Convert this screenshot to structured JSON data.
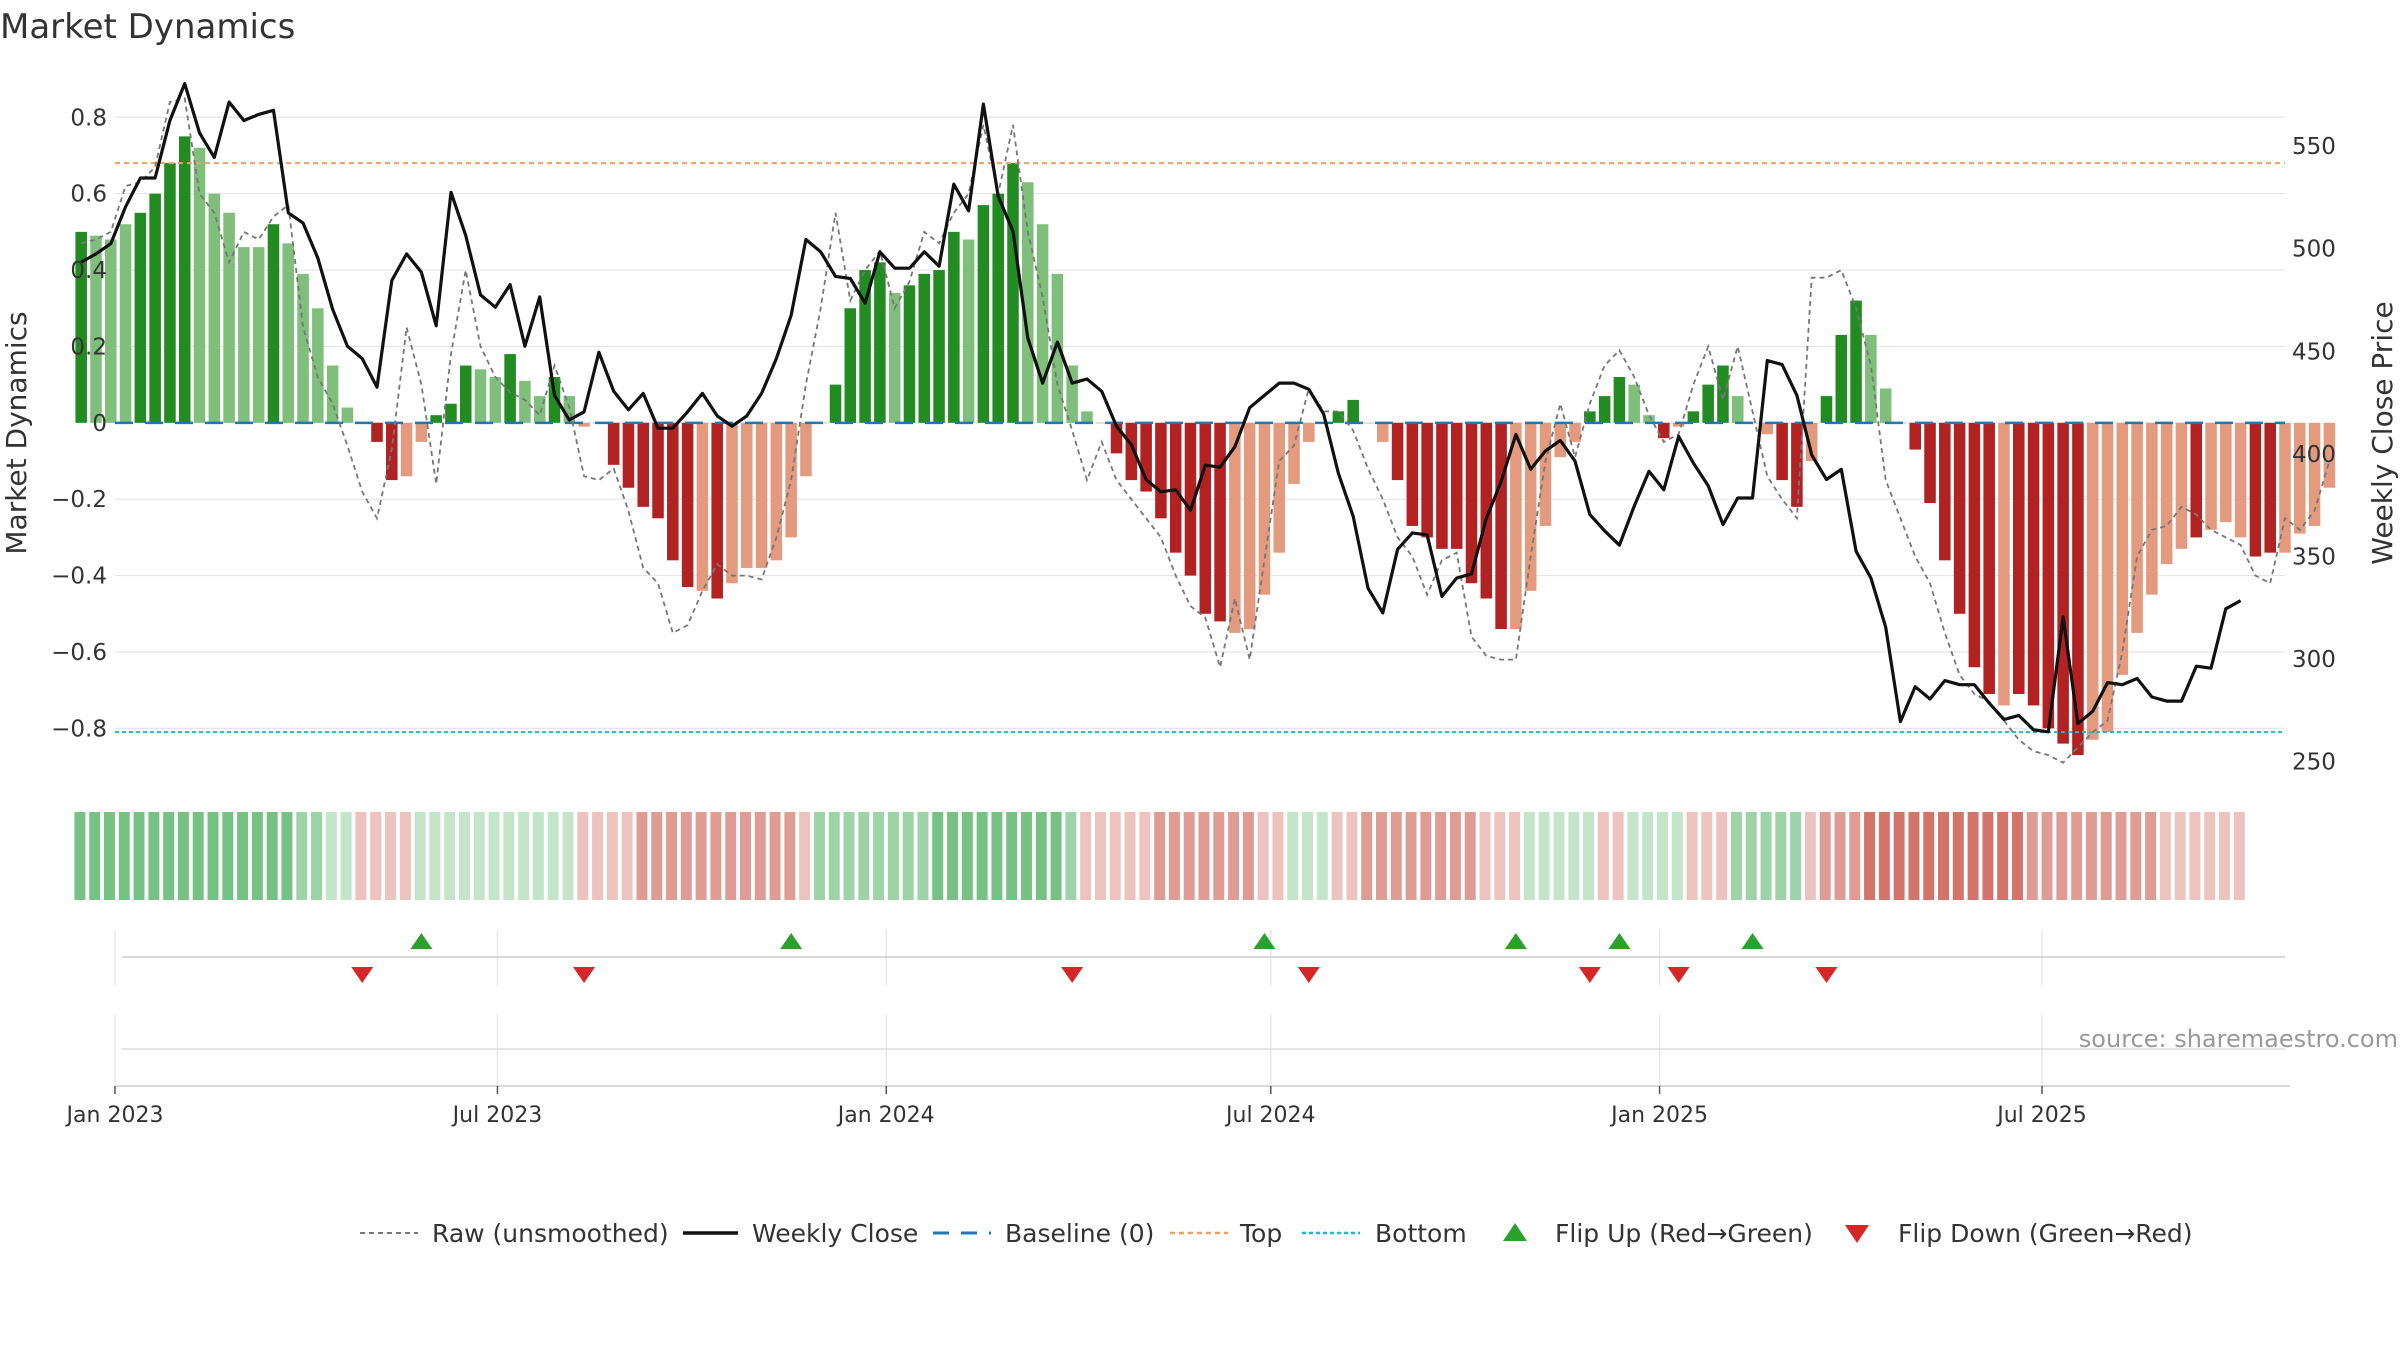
{
  "title": "Market Dynamics",
  "source_text": "source: sharemaestro.com",
  "colors": {
    "green_strong": "#228b22",
    "green_light": "#7fbf7b",
    "red_strong": "#b22222",
    "red_light": "#e39a7e",
    "raw_line": "#777777",
    "close_line": "#111111",
    "baseline": "#1f77b4",
    "top_line": "#f0a060",
    "bottom_line": "#17becf",
    "flip_up": "#2ca02c",
    "flip_down": "#d62728"
  },
  "legend": [
    {
      "key": "raw",
      "label": "Raw (unsmoothed)"
    },
    {
      "key": "close",
      "label": "Weekly Close"
    },
    {
      "key": "baseline",
      "label": "Baseline (0)"
    },
    {
      "key": "top",
      "label": "Top"
    },
    {
      "key": "bottom",
      "label": "Bottom"
    },
    {
      "key": "flipup",
      "label": "Flip Up (Red→Green)"
    },
    {
      "key": "flipdown",
      "label": "Flip Down (Green→Red)"
    }
  ],
  "chart_data": {
    "type": "bar",
    "title": "Market Dynamics",
    "ylabel": "Market Dynamics",
    "y2label": "Weekly Close Price",
    "ylim": [
      -0.93,
      0.95
    ],
    "y2lim": [
      241.5,
      591.5
    ],
    "yticks": [
      "0.8",
      "0.6",
      "0.4",
      "0.2",
      "0",
      "−0.2",
      "−0.4",
      "−0.6",
      "−0.8"
    ],
    "ytick_values": [
      0.8,
      0.6,
      0.4,
      0.2,
      0,
      -0.2,
      -0.4,
      -0.6,
      -0.8
    ],
    "y2ticks": [
      550,
      500,
      450,
      400,
      350,
      300,
      250
    ],
    "x_start": "2023-01-01",
    "x_end": "2025-10-24",
    "xticks": [
      {
        "label": "Jan 2023",
        "date": "2023-01-01"
      },
      {
        "label": "Jul 2023",
        "date": "2023-07-01"
      },
      {
        "label": "Jan 2024",
        "date": "2024-01-01"
      },
      {
        "label": "Jul 2024",
        "date": "2024-07-01"
      },
      {
        "label": "Jan 2025",
        "date": "2025-01-01"
      },
      {
        "label": "Jul 2025",
        "date": "2025-07-01"
      }
    ],
    "top_level": 0.68,
    "bottom_level": -0.81,
    "baseline_level": 0,
    "first_week": "2022-12-16",
    "week_interval_days": 7,
    "dynamics": [
      0.5,
      0.49,
      0.48,
      0.52,
      0.55,
      0.6,
      0.68,
      0.75,
      0.72,
      0.6,
      0.55,
      0.46,
      0.46,
      0.52,
      0.47,
      0.39,
      0.3,
      0.15,
      0.04,
      0.0,
      -0.05,
      -0.15,
      -0.14,
      -0.05,
      0.02,
      0.05,
      0.15,
      0.14,
      0.12,
      0.18,
      0.11,
      0.07,
      0.12,
      0.07,
      -0.01,
      0.0,
      -0.11,
      -0.17,
      -0.22,
      -0.25,
      -0.36,
      -0.43,
      -0.44,
      -0.46,
      -0.42,
      -0.38,
      -0.38,
      -0.36,
      -0.3,
      -0.14,
      0.0,
      0.1,
      0.3,
      0.4,
      0.42,
      0.34,
      0.36,
      0.39,
      0.4,
      0.5,
      0.48,
      0.57,
      0.6,
      0.68,
      0.63,
      0.52,
      0.39,
      0.15,
      0.03,
      0.0,
      -0.08,
      -0.15,
      -0.18,
      -0.25,
      -0.34,
      -0.4,
      -0.5,
      -0.52,
      -0.55,
      -0.54,
      -0.45,
      -0.34,
      -0.16,
      -0.05,
      0.0,
      0.03,
      0.06,
      0.0,
      -0.05,
      -0.15,
      -0.27,
      -0.3,
      -0.33,
      -0.33,
      -0.42,
      -0.46,
      -0.54,
      -0.54,
      -0.44,
      -0.27,
      -0.09,
      -0.05,
      0.03,
      0.07,
      0.12,
      0.1,
      0.02,
      -0.04,
      -0.01,
      0.03,
      0.1,
      0.15,
      0.07,
      0.0,
      -0.03,
      -0.15,
      -0.22,
      -0.1,
      0.07,
      0.23,
      0.32,
      0.23,
      0.09,
      0.0,
      -0.07,
      -0.21,
      -0.36,
      -0.5,
      -0.64,
      -0.71,
      -0.74,
      -0.71,
      -0.74,
      -0.8,
      -0.84,
      -0.87,
      -0.83,
      -0.81,
      -0.66,
      -0.55,
      -0.45,
      -0.37,
      -0.33,
      -0.3,
      -0.28,
      -0.26,
      -0.3,
      -0.35,
      -0.34,
      -0.34,
      -0.29,
      -0.27,
      -0.17
    ],
    "strong": [
      1,
      0,
      0,
      0,
      1,
      1,
      1,
      1,
      0,
      0,
      0,
      0,
      0,
      1,
      0,
      0,
      0,
      0,
      0,
      0,
      1,
      1,
      0,
      0,
      1,
      1,
      1,
      0,
      0,
      1,
      0,
      0,
      1,
      0,
      0,
      0,
      1,
      1,
      1,
      1,
      1,
      1,
      0,
      1,
      0,
      0,
      0,
      0,
      0,
      0,
      0,
      1,
      1,
      1,
      1,
      0,
      1,
      1,
      1,
      1,
      0,
      1,
      1,
      1,
      0,
      0,
      0,
      0,
      0,
      0,
      1,
      1,
      1,
      1,
      1,
      1,
      1,
      1,
      0,
      0,
      0,
      0,
      0,
      0,
      0,
      1,
      1,
      0,
      0,
      1,
      1,
      1,
      1,
      1,
      1,
      1,
      1,
      0,
      0,
      0,
      0,
      0,
      1,
      1,
      1,
      0,
      0,
      1,
      0,
      1,
      1,
      1,
      0,
      0,
      0,
      1,
      1,
      0,
      1,
      1,
      1,
      0,
      0,
      0,
      1,
      1,
      1,
      1,
      1,
      1,
      0,
      1,
      1,
      1,
      1,
      1,
      0,
      0,
      0,
      0,
      0,
      0,
      0,
      1,
      0,
      0,
      0,
      1,
      1,
      0,
      0,
      0,
      0
    ],
    "raw": [
      0.47,
      0.48,
      0.5,
      0.62,
      0.63,
      0.67,
      0.84,
      0.85,
      0.6,
      0.55,
      0.42,
      0.5,
      0.48,
      0.54,
      0.57,
      0.25,
      0.12,
      0.05,
      -0.06,
      -0.18,
      -0.25,
      -0.07,
      0.25,
      0.1,
      -0.16,
      0.18,
      0.4,
      0.2,
      0.12,
      0.08,
      0.06,
      0.02,
      0.15,
      0.04,
      -0.14,
      -0.15,
      -0.12,
      -0.23,
      -0.38,
      -0.42,
      -0.55,
      -0.53,
      -0.44,
      -0.37,
      -0.4,
      -0.4,
      -0.41,
      -0.3,
      -0.15,
      0.1,
      0.3,
      0.55,
      0.32,
      0.4,
      0.45,
      0.3,
      0.37,
      0.5,
      0.47,
      0.55,
      0.6,
      0.78,
      0.6,
      0.78,
      0.5,
      0.33,
      0.1,
      -0.02,
      -0.15,
      -0.05,
      -0.15,
      -0.2,
      -0.25,
      -0.3,
      -0.4,
      -0.48,
      -0.51,
      -0.64,
      -0.46,
      -0.62,
      -0.36,
      -0.1,
      -0.06,
      0.09,
      0.03,
      0.03,
      -0.02,
      -0.12,
      -0.2,
      -0.3,
      -0.35,
      -0.45,
      -0.36,
      -0.34,
      -0.56,
      -0.61,
      -0.62,
      -0.62,
      -0.35,
      -0.1,
      0.05,
      -0.09,
      0.05,
      0.15,
      0.19,
      0.12,
      0.02,
      -0.05,
      -0.03,
      0.1,
      0.2,
      0.06,
      0.2,
      0.03,
      -0.14,
      -0.2,
      -0.25,
      0.38,
      0.38,
      0.4,
      0.3,
      0.15,
      -0.15,
      -0.25,
      -0.35,
      -0.42,
      -0.55,
      -0.66,
      -0.71,
      -0.73,
      -0.78,
      -0.83,
      -0.86,
      -0.87,
      -0.89,
      -0.85,
      -0.81,
      -0.78,
      -0.6,
      -0.35,
      -0.28,
      -0.27,
      -0.22,
      -0.24,
      -0.28,
      -0.3,
      -0.32,
      -0.4,
      -0.42,
      -0.25,
      -0.28,
      -0.23,
      -0.1
    ],
    "close": [
      493,
      497,
      502,
      520,
      534,
      534,
      562,
      580,
      556,
      544,
      571,
      562,
      565,
      567,
      517,
      512,
      495,
      470,
      452,
      446,
      432,
      484,
      497,
      488,
      462,
      527,
      506,
      477,
      471,
      482,
      452,
      476,
      428,
      416,
      420,
      449,
      430,
      421,
      429,
      412,
      412,
      420,
      429,
      418,
      413,
      418,
      429,
      446,
      467,
      504,
      498,
      486,
      485,
      473,
      498,
      490,
      490,
      498,
      491,
      531,
      518,
      570,
      525,
      508,
      456,
      434,
      454,
      434,
      436,
      430,
      413,
      404,
      387,
      381,
      382,
      372,
      394,
      393,
      403,
      422,
      428,
      434,
      434,
      431,
      419,
      390,
      369,
      334,
      322,
      353,
      361,
      360,
      330,
      339,
      341,
      368,
      386,
      409,
      392,
      401,
      406,
      396,
      370,
      362,
      355,
      374,
      391,
      382,
      408,
      395,
      384,
      365,
      378,
      378,
      445,
      443,
      428,
      399,
      387,
      392,
      352,
      339,
      315,
      269,
      286,
      280,
      289,
      287,
      287,
      278,
      270,
      272,
      265,
      264,
      320,
      268,
      274,
      288,
      287,
      290,
      281,
      279,
      279,
      296,
      295,
      324,
      328
    ],
    "band": [
      "g",
      3,
      "g",
      3,
      "g",
      3,
      "g",
      3,
      "g",
      3,
      "g",
      3,
      "g",
      3,
      "g",
      3,
      "g",
      3,
      "g",
      3,
      "g",
      3,
      "g",
      3,
      "g",
      3,
      "g",
      3,
      "g",
      3,
      "g",
      2,
      "g",
      2,
      "g",
      1,
      "g",
      1,
      "r",
      1,
      "r",
      1,
      "r",
      1,
      "r",
      1,
      "g",
      1,
      "g",
      1,
      "g",
      1,
      "g",
      1,
      "g",
      1,
      "g",
      1,
      "g",
      1,
      "g",
      1,
      "g",
      1,
      "g",
      1,
      "g",
      1,
      "r",
      1,
      "r",
      1,
      "r",
      1,
      "r",
      1,
      "r",
      2,
      "r",
      2,
      "r",
      2,
      "r",
      2,
      "r",
      2,
      "r",
      2,
      "r",
      2,
      "r",
      2,
      "r",
      2,
      "r",
      2,
      "r",
      2,
      "r",
      1,
      "g",
      2,
      "g",
      2,
      "g",
      2,
      "g",
      2,
      "g",
      2,
      "g",
      2,
      "g",
      2,
      "g",
      2,
      "g",
      3,
      "g",
      3,
      "g",
      3,
      "g",
      3,
      "g",
      3,
      "g",
      3,
      "g",
      3,
      "g",
      3,
      "g",
      3,
      "g",
      2,
      "r",
      1,
      "r",
      1,
      "r",
      1,
      "r",
      1,
      "r",
      1,
      "r",
      2,
      "r",
      2,
      "r",
      2,
      "r",
      2,
      "r",
      2,
      "r",
      2,
      "r",
      2,
      "r",
      1,
      "r",
      1,
      "g",
      1,
      "g",
      1,
      "g",
      1,
      "r",
      1,
      "r",
      1,
      "r",
      2,
      "r",
      2,
      "r",
      2,
      "r",
      2,
      "r",
      2,
      "r",
      2,
      "r",
      2,
      "r",
      2,
      "r",
      1,
      "r",
      1,
      "r",
      1,
      "g",
      1,
      "g",
      1,
      "g",
      1,
      "g",
      1,
      "g",
      1,
      "r",
      1,
      "r",
      1,
      "g",
      1,
      "g",
      1,
      "g",
      1,
      "g",
      1,
      "r",
      1,
      "r",
      1,
      "r",
      1,
      "g",
      2,
      "g",
      2,
      "g",
      2,
      "g",
      2,
      "g",
      2,
      "r",
      1,
      "r",
      2,
      "r",
      2,
      "r",
      2,
      "r",
      3,
      "r",
      3,
      "r",
      3,
      "r",
      3,
      "r",
      3,
      "r",
      3,
      "r",
      3,
      "r",
      3,
      "r",
      3,
      "r",
      3,
      "r",
      3,
      "r",
      2,
      "r",
      2,
      "r",
      2,
      "r",
      2,
      "r",
      2,
      "r",
      2,
      "r",
      2,
      "r",
      2,
      "r",
      2,
      "r",
      1,
      "r",
      1,
      "r",
      1,
      "r",
      1,
      "r",
      1,
      "r",
      1
    ],
    "flip_up_dates": [
      "2023-05-26",
      "2023-11-17",
      "2024-06-28",
      "2024-10-25",
      "2024-12-13",
      "2025-02-14"
    ],
    "flip_down_dates": [
      "2023-04-28",
      "2023-08-11",
      "2024-03-29",
      "2024-07-19",
      "2024-11-29",
      "2025-01-10",
      "2025-03-21"
    ]
  }
}
